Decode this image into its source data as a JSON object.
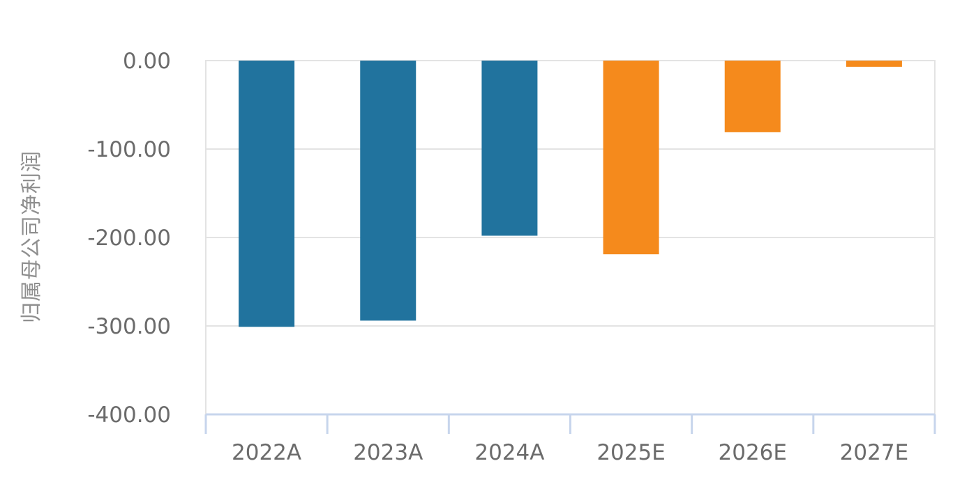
{
  "chart_data": {
    "type": "bar",
    "title": "",
    "xlabel": "",
    "ylabel": "归属母公司净利润",
    "categories": [
      "2022A",
      "2023A",
      "2024A",
      "2025E",
      "2026E",
      "2027E"
    ],
    "values": [
      -301,
      -294,
      -198,
      -219,
      -81,
      -7
    ],
    "bar_kinds": [
      "actual",
      "actual",
      "actual",
      "estimate",
      "estimate",
      "estimate"
    ],
    "ylim": [
      -400,
      0
    ],
    "yticks": [
      "0.00",
      "-100.00",
      "-200.00",
      "-300.00",
      "-400.00"
    ],
    "ytick_values": [
      0,
      -100,
      -200,
      -300,
      -400
    ],
    "grid": true,
    "colors": {
      "actual": "#21739e",
      "estimate": "#f58a1c",
      "grid": "#e3e3e3",
      "axis": "#c7d5ec",
      "tick_text": "#6b6b6b"
    }
  }
}
